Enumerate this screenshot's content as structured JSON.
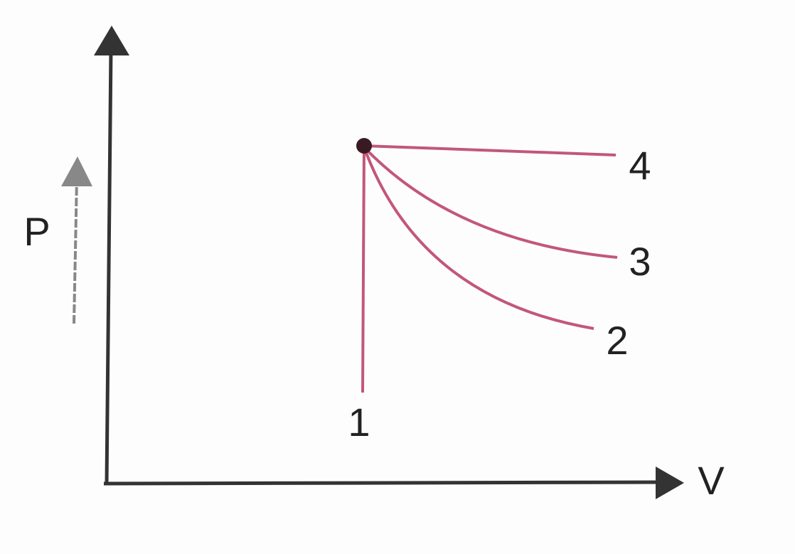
{
  "axes": {
    "y_label": "P",
    "x_label": "V"
  },
  "processes": [
    {
      "label": "1"
    },
    {
      "label": "2"
    },
    {
      "label": "3"
    },
    {
      "label": "4"
    }
  ]
}
